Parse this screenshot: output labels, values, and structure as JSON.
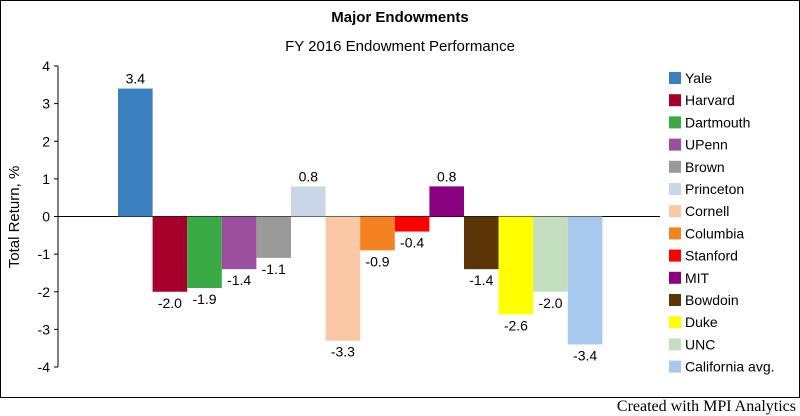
{
  "chart_data": {
    "type": "bar",
    "title": "Major Endowments",
    "subtitle": "FY 2016 Endowment Performance",
    "ylabel": "Total Return, %",
    "xlabel": "",
    "ylim": [
      -4,
      4
    ],
    "yticks": [
      4,
      3,
      2,
      1,
      0,
      -1,
      -2,
      -3,
      -4
    ],
    "grid": false,
    "legend_position": "right",
    "categories": [
      "Yale",
      "Harvard",
      "Dartmouth",
      "UPenn",
      "Brown",
      "Princeton",
      "Cornell",
      "Columbia",
      "Stanford",
      "MIT",
      "Bowdoin",
      "Duke",
      "UNC",
      "California avg."
    ],
    "values": [
      3.4,
      -2.0,
      -1.9,
      -1.4,
      -1.1,
      0.8,
      -3.3,
      -0.9,
      -0.4,
      0.8,
      -1.4,
      -2.6,
      -2.0,
      -3.4
    ],
    "value_labels": [
      "3.4",
      "-2.0",
      "-1.9",
      "-1.4",
      "-1.1",
      "0.8",
      "-3.3",
      "-0.9",
      "-0.4",
      "0.8",
      "-1.4",
      "-2.6",
      "-2.0",
      "-3.4"
    ],
    "colors": [
      "#3a7fc0",
      "#a6002a",
      "#3aaa47",
      "#9c4f9e",
      "#9a9a9a",
      "#c9d6e8",
      "#fbc8a6",
      "#f58220",
      "#ff0000",
      "#8b0080",
      "#5a3508",
      "#ffff00",
      "#c4dfc0",
      "#a9c8ee"
    ]
  },
  "footer": {
    "credit": "Created with MPI Analytics"
  }
}
